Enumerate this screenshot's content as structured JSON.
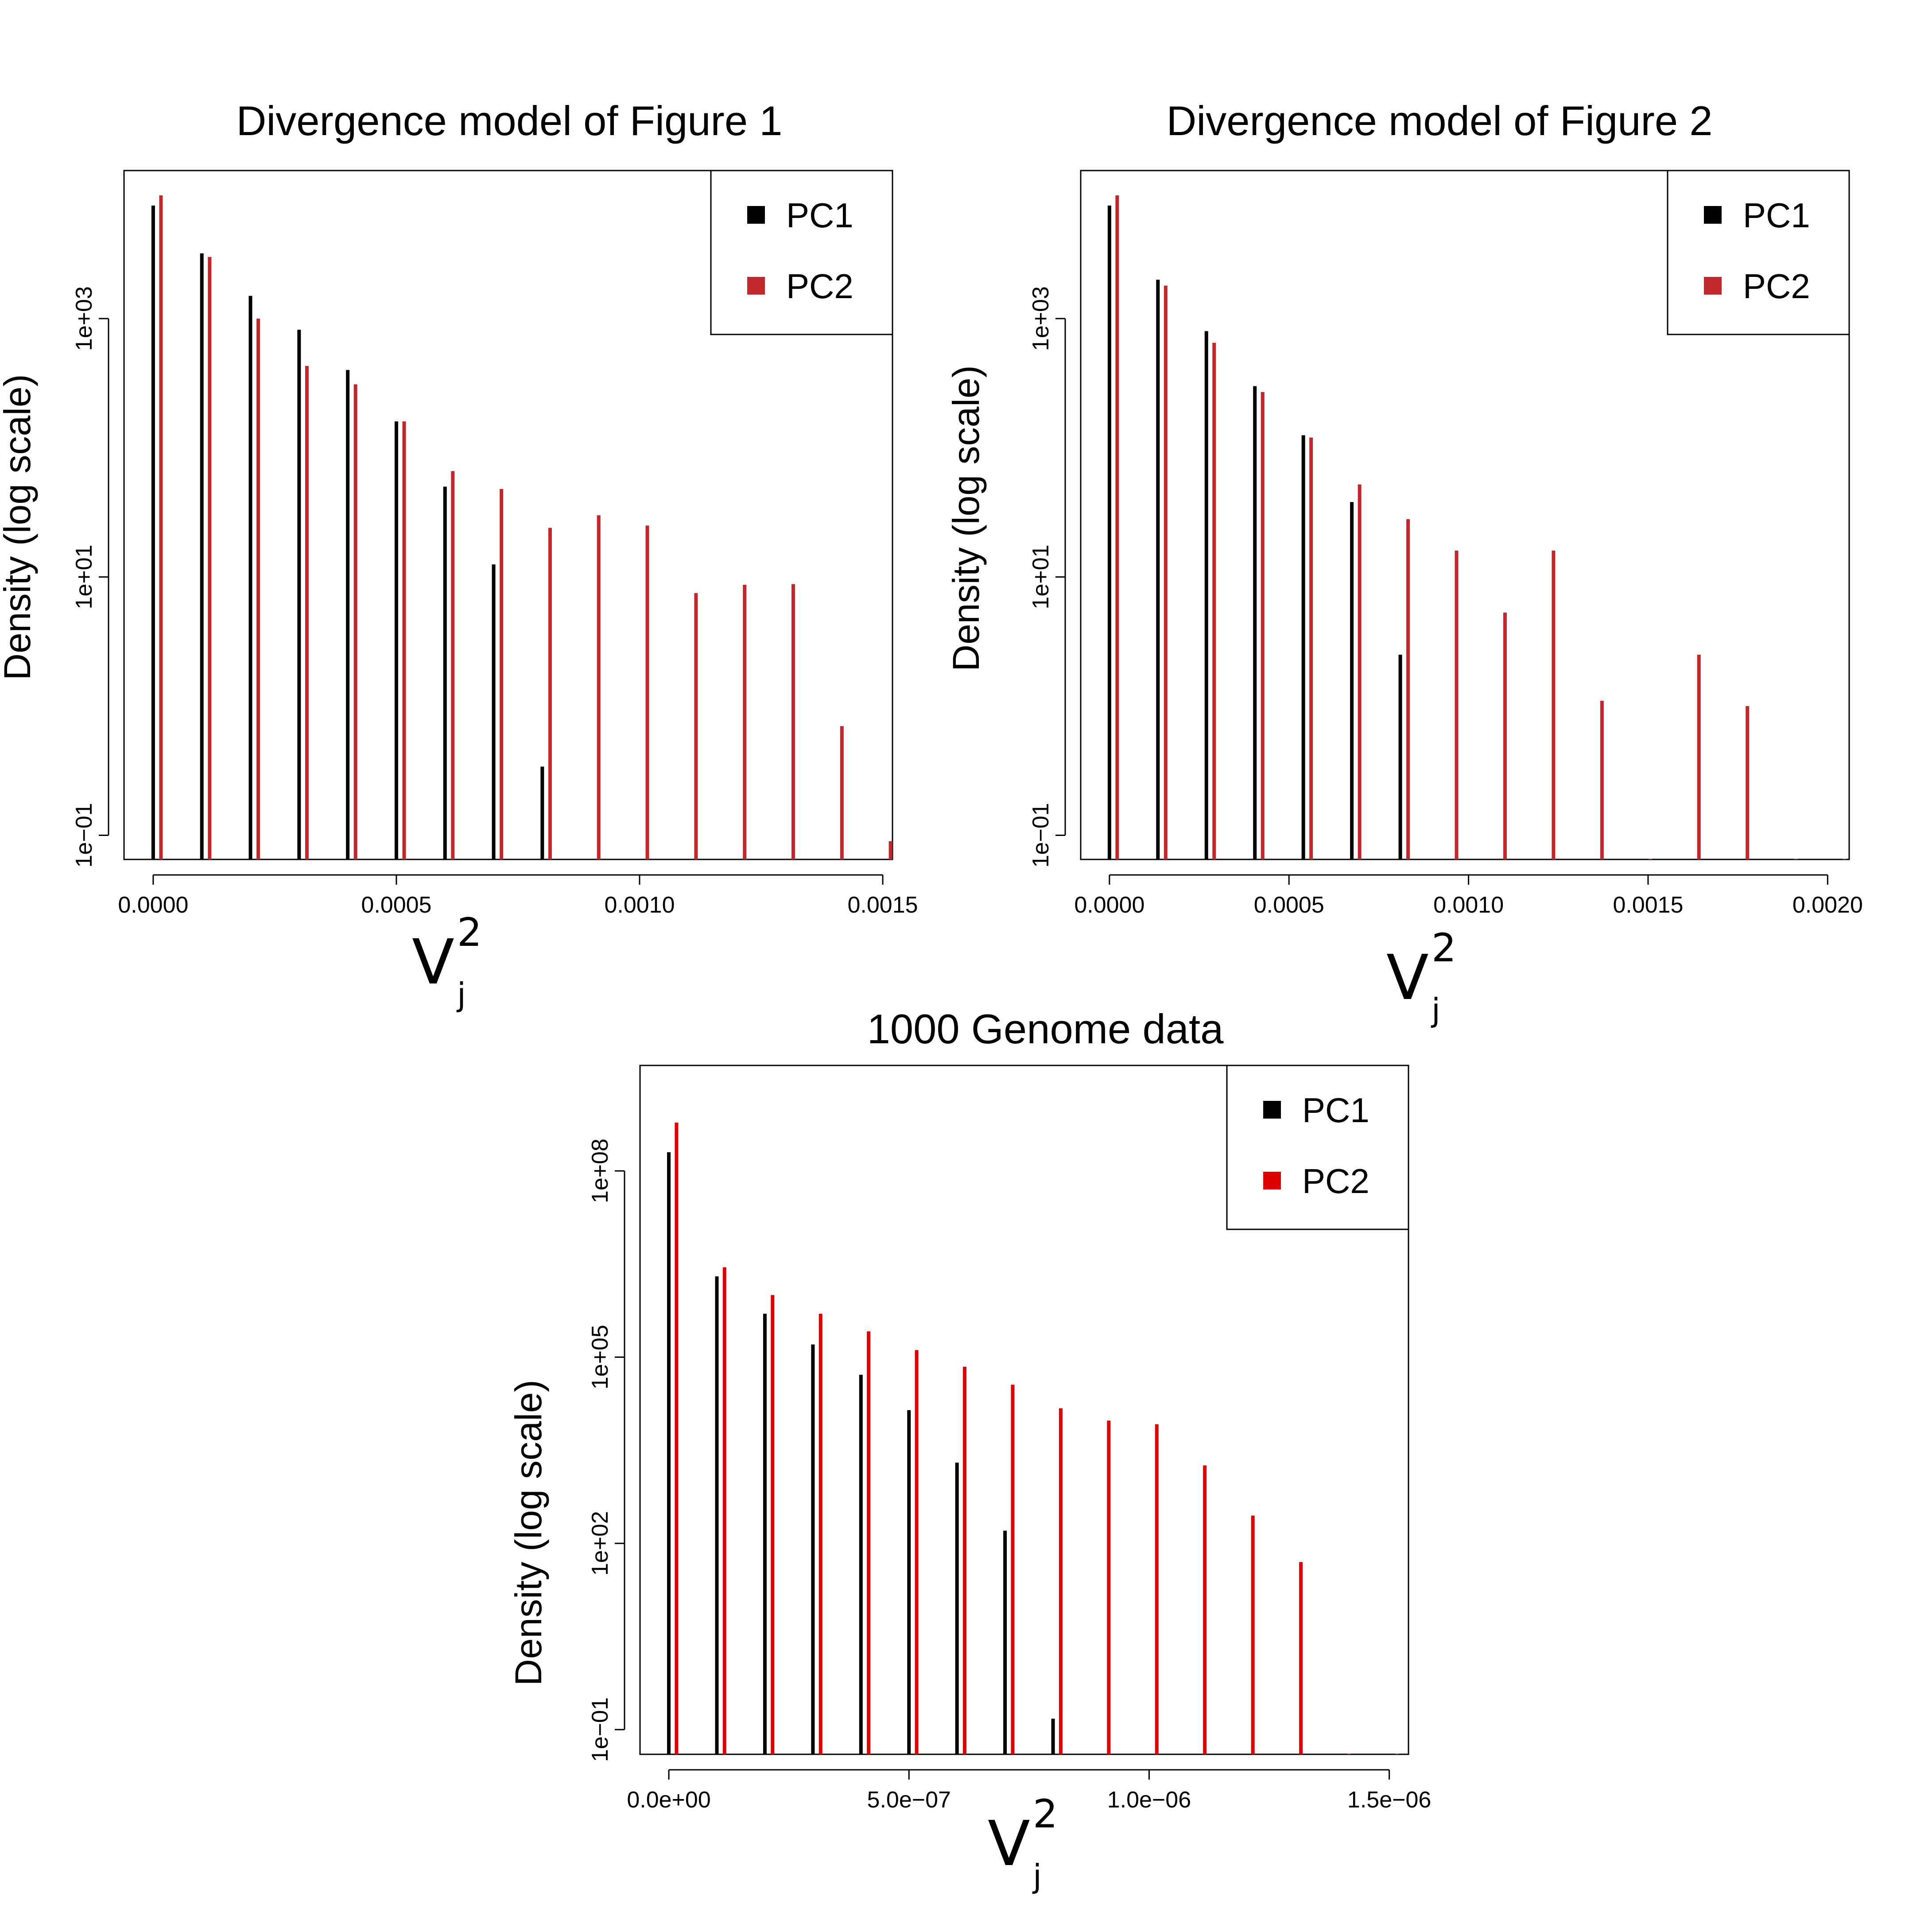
{
  "chart_data": [
    {
      "type": "bar",
      "title": "Divergence model of Figure 1",
      "ylabel": "Density (log scale)",
      "xlabel": {
        "base": "V",
        "sub": "j",
        "sup": "2"
      },
      "yscale": "log",
      "ylim": [
        0.065,
        14000
      ],
      "yticks": [
        0.1,
        10,
        1000
      ],
      "ytick_labels": [
        "1e−01",
        "1e+01",
        "1e+03"
      ],
      "xlim": [
        -6e-05,
        0.00152
      ],
      "xticks": [
        0,
        0.0005,
        0.001,
        0.0015
      ],
      "xtick_labels": [
        "0.0000",
        "0.0005",
        "0.0010",
        "0.0015"
      ],
      "bin_width": 0.0001,
      "legend": {
        "position": "top-right",
        "entries": [
          "PC1",
          "PC2"
        ]
      },
      "series": [
        {
          "name": "PC1",
          "color": "#000000",
          "x": [
            0,
            0.0001,
            0.0002,
            0.0003,
            0.0004,
            0.0005,
            0.0006,
            0.0007,
            0.0008
          ],
          "values": [
            7500,
            3200,
            1500,
            820,
            400,
            160,
            50,
            12.5,
            0.34
          ]
        },
        {
          "name": "PC2",
          "color": "#c0282d",
          "x": [
            0,
            0.0001,
            0.0002,
            0.0003,
            0.0004,
            0.0005,
            0.0006,
            0.0007,
            0.0008,
            0.0009,
            0.001,
            0.0011,
            0.0012,
            0.0013,
            0.0014,
            0.0015
          ],
          "values": [
            9000,
            3000,
            1000,
            430,
            310,
            160,
            66,
            48,
            24,
            30,
            25,
            7.5,
            8.7,
            8.8,
            0.7,
            0.09
          ]
        }
      ]
    },
    {
      "type": "bar",
      "title": "Divergence model of Figure 2",
      "ylabel": "Density (log scale)",
      "xlabel": {
        "base": "V",
        "sub": "j",
        "sup": "2"
      },
      "yscale": "log",
      "ylim": [
        0.065,
        14000
      ],
      "yticks": [
        0.1,
        10,
        1000
      ],
      "ytick_labels": [
        "1e−01",
        "1e+01",
        "1e+03"
      ],
      "xlim": [
        -8e-05,
        0.00206
      ],
      "xticks": [
        0,
        0.0005,
        0.001,
        0.0015,
        0.002
      ],
      "xtick_labels": [
        "0.0000",
        "0.0005",
        "0.0010",
        "0.0015",
        "0.0020"
      ],
      "bin_width": 0.000135,
      "legend": {
        "position": "top-right",
        "entries": [
          "PC1",
          "PC2"
        ]
      },
      "series": [
        {
          "name": "PC1",
          "color": "#000000",
          "x": [
            0,
            0.000135,
            0.00027,
            0.000405,
            0.00054,
            0.000675,
            0.00081
          ],
          "values": [
            7500,
            2000,
            800,
            300,
            125,
            38,
            2.5
          ]
        },
        {
          "name": "PC2",
          "color": "#c0282d",
          "x": [
            0,
            0.000135,
            0.00027,
            0.000405,
            0.00054,
            0.000675,
            0.00081,
            0.000945,
            0.00108,
            0.001215,
            0.00135,
            0.001485,
            0.00162,
            0.001755,
            0.00189,
            0.002025
          ],
          "values": [
            9000,
            1800,
            650,
            270,
            120,
            52,
            28,
            16,
            5.3,
            16,
            1.1,
            0.065,
            2.5,
            1.0,
            0.065,
            0.065
          ]
        }
      ]
    },
    {
      "type": "bar",
      "title": "1000 Genome data",
      "ylabel": "Density (log scale)",
      "xlabel": {
        "base": "V",
        "sub": "j",
        "sup": "2"
      },
      "yscale": "log",
      "ylim": [
        0.04,
        5000000000
      ],
      "yticks": [
        0.1,
        100,
        100000,
        100000000
      ],
      "ytick_labels": [
        "1e−01",
        "1e+02",
        "1e+05",
        "1e+08"
      ],
      "xlim": [
        -6e-08,
        1.54e-06
      ],
      "xticks": [
        0,
        5e-07,
        1e-06,
        1.5e-06
      ],
      "xtick_labels": [
        "0.0e+00",
        "5.0e−07",
        "1.0e−06",
        "1.5e−06"
      ],
      "bin_width": 1e-07,
      "legend": {
        "position": "top-right",
        "entries": [
          "PC1",
          "PC2"
        ]
      },
      "series": [
        {
          "name": "PC1",
          "color": "#000000",
          "x": [
            0,
            1e-07,
            2e-07,
            3e-07,
            4e-07,
            5e-07,
            6e-07,
            7e-07,
            8e-07
          ],
          "values": [
            200000000,
            2000000,
            500000,
            160000,
            52000,
            14000,
            2000,
            160,
            0.15
          ]
        },
        {
          "name": "PC2",
          "color": "#dd0000",
          "x": [
            0,
            1e-07,
            2e-07,
            3e-07,
            4e-07,
            5e-07,
            6e-07,
            7e-07,
            8e-07,
            9e-07,
            1e-06,
            1.1e-06,
            1.2e-06,
            1.3e-06,
            1.4e-06,
            1.5e-06
          ],
          "values": [
            600000000,
            2800000,
            1000000,
            500000,
            260000,
            130000,
            70000,
            36000,
            15000,
            9500,
            8300,
            1800,
            280,
            50,
            0.04,
            0.04
          ]
        }
      ]
    }
  ]
}
